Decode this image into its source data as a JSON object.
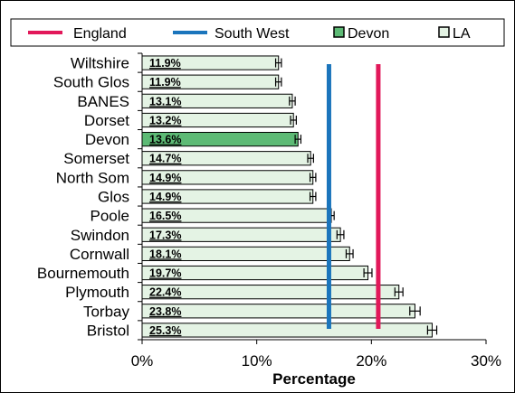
{
  "chart_data": {
    "type": "bar",
    "orientation": "horizontal",
    "title": "",
    "xlabel": "Percentage",
    "ylabel": "",
    "xlim": [
      0,
      30
    ],
    "xticks": [
      "0%",
      "10%",
      "20%",
      "30%"
    ],
    "xtick_values": [
      0,
      10,
      20,
      30
    ],
    "grid": false,
    "legend_position": "top",
    "categories": [
      "Wiltshire",
      "South Glos",
      "BANES",
      "Dorset",
      "Devon",
      "Somerset",
      "North Som",
      "Glos",
      "Poole",
      "Swindon",
      "Cornwall",
      "Bournemouth",
      "Plymouth",
      "Torbay",
      "Bristol"
    ],
    "values": [
      11.9,
      11.9,
      13.1,
      13.2,
      13.6,
      14.7,
      14.9,
      14.9,
      16.5,
      17.3,
      18.1,
      19.7,
      22.4,
      23.8,
      25.3
    ],
    "value_labels": [
      "11.9%",
      "11.9%",
      "13.1%",
      "13.2%",
      "13.6%",
      "14.7%",
      "14.9%",
      "14.9%",
      "16.5%",
      "17.3%",
      "18.1%",
      "19.7%",
      "22.4%",
      "23.8%",
      "25.3%"
    ],
    "error_margin": [
      0.25,
      0.25,
      0.25,
      0.25,
      0.25,
      0.25,
      0.25,
      0.25,
      0.25,
      0.3,
      0.3,
      0.35,
      0.35,
      0.45,
      0.4
    ],
    "highlight": "Devon",
    "reference_lines": [
      {
        "name": "England",
        "value": 20.6,
        "color": "#e2185a"
      },
      {
        "name": "South West",
        "value": 16.3,
        "color": "#1b75bc"
      }
    ],
    "legend": [
      {
        "name": "England",
        "kind": "line",
        "color": "#e2185a"
      },
      {
        "name": "South West",
        "kind": "line",
        "color": "#1b75bc"
      },
      {
        "name": "Devon",
        "kind": "box",
        "color": "#5dba75"
      },
      {
        "name": "LA",
        "kind": "box",
        "color": "#e4f3e4"
      }
    ],
    "colors": {
      "bar": "#e4f3e4",
      "highlight_bar": "#5dba75",
      "bar_border": "#000000"
    }
  }
}
